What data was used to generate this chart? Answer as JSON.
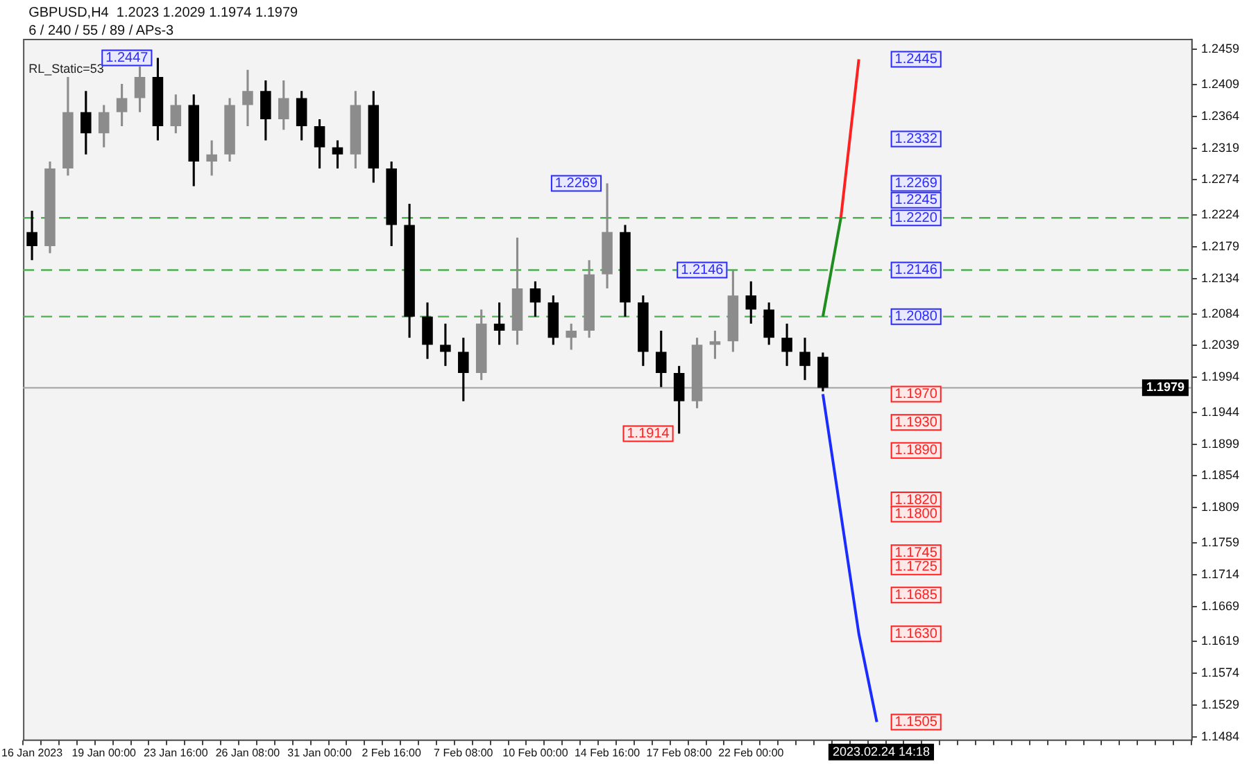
{
  "chart_data": {
    "type": "candlestick",
    "title": "GBPUSD,H4  1.2023 1.2029 1.1974 1.1979",
    "subtitle": "6 / 240 / 55 / 89 / APs-3",
    "categories": [
      "16 Jan 2023",
      null,
      null,
      null,
      "19 Jan 00:00",
      null,
      null,
      null,
      "23 Jan 16:00",
      null,
      null,
      null,
      "26 Jan 08:00",
      null,
      null,
      null,
      "31 Jan 00:00",
      null,
      null,
      null,
      "2 Feb 16:00",
      null,
      null,
      null,
      "7 Feb 08:00",
      null,
      null,
      null,
      "10 Feb 00:00",
      null,
      null,
      null,
      "14 Feb 16:00",
      null,
      null,
      null,
      "17 Feb 08:00",
      null,
      null,
      null,
      "22 Feb 00:00",
      null,
      null,
      null,
      null,
      null,
      null,
      null,
      null,
      null,
      null,
      null,
      null,
      null,
      null,
      null,
      null,
      null,
      null,
      null,
      null,
      null,
      null,
      null,
      null
    ],
    "colors": [
      "#000000",
      "#8c8c8c",
      "#8c8c8c",
      "#000000",
      "#8c8c8c",
      "#8c8c8c",
      "#8c8c8c",
      "#000000",
      "#8c8c8c",
      "#000000",
      "#8c8c8c",
      "#8c8c8c",
      "#8c8c8c",
      "#000000",
      "#8c8c8c",
      "#000000",
      "#000000",
      "#000000",
      "#8c8c8c",
      "#000000",
      "#000000",
      "#000000",
      "#000000",
      "#000000",
      "#000000",
      "#8c8c8c",
      "#000000",
      "#8c8c8c",
      "#000000",
      "#000000",
      "#8c8c8c",
      "#8c8c8c",
      "#8c8c8c",
      "#000000",
      "#000000",
      "#000000",
      "#000000",
      "#8c8c8c",
      "#8c8c8c",
      "#8c8c8c",
      "#000000",
      "#000000",
      "#000000",
      "#000000",
      "#000000",
      null,
      null,
      null,
      null,
      null,
      null,
      null,
      null,
      null,
      null,
      null,
      null,
      null,
      null,
      null,
      null,
      null,
      null,
      null,
      null
    ],
    "ohlc": [
      [
        1.22,
        1.223,
        1.216,
        1.218
      ],
      [
        1.218,
        1.23,
        1.217,
        1.229
      ],
      [
        1.229,
        1.242,
        1.228,
        1.237
      ],
      [
        1.237,
        1.24,
        1.231,
        1.234
      ],
      [
        1.234,
        1.238,
        1.232,
        1.237
      ],
      [
        1.237,
        1.241,
        1.235,
        1.239
      ],
      [
        1.239,
        1.2435,
        1.237,
        1.242
      ],
      [
        1.242,
        1.2447,
        1.233,
        1.235
      ],
      [
        1.235,
        1.2395,
        1.234,
        1.238
      ],
      [
        1.238,
        1.2395,
        1.2265,
        1.23
      ],
      [
        1.23,
        1.233,
        1.228,
        1.231
      ],
      [
        1.231,
        1.239,
        1.23,
        1.238
      ],
      [
        1.238,
        1.243,
        1.235,
        1.24
      ],
      [
        1.24,
        1.2415,
        1.233,
        1.236
      ],
      [
        1.236,
        1.2415,
        1.2345,
        1.239
      ],
      [
        1.239,
        1.24,
        1.233,
        1.235
      ],
      [
        1.235,
        1.236,
        1.229,
        1.232
      ],
      [
        1.232,
        1.233,
        1.229,
        1.231
      ],
      [
        1.231,
        1.24,
        1.229,
        1.238
      ],
      [
        1.238,
        1.24,
        1.227,
        1.229
      ],
      [
        1.229,
        1.23,
        1.218,
        1.221
      ],
      [
        1.221,
        1.224,
        1.205,
        1.208
      ],
      [
        1.208,
        1.21,
        1.202,
        1.204
      ],
      [
        1.204,
        1.207,
        1.201,
        1.203
      ],
      [
        1.203,
        1.205,
        1.196,
        1.2
      ],
      [
        1.2,
        1.209,
        1.199,
        1.207
      ],
      [
        1.207,
        1.21,
        1.204,
        1.206
      ],
      [
        1.206,
        1.2192,
        1.204,
        1.212
      ],
      [
        1.212,
        1.213,
        1.208,
        1.21
      ],
      [
        1.21,
        1.211,
        1.204,
        1.205
      ],
      [
        1.205,
        1.207,
        1.2033,
        1.206
      ],
      [
        1.206,
        1.216,
        1.205,
        1.214
      ],
      [
        1.214,
        1.2269,
        1.212,
        1.22
      ],
      [
        1.22,
        1.221,
        1.208,
        1.21
      ],
      [
        1.21,
        1.211,
        1.201,
        1.203
      ],
      [
        1.203,
        1.206,
        1.198,
        1.2
      ],
      [
        1.2,
        1.201,
        1.1914,
        1.196
      ],
      [
        1.196,
        1.205,
        1.195,
        1.204
      ],
      [
        1.204,
        1.206,
        1.202,
        1.2045
      ],
      [
        1.2045,
        1.2146,
        1.203,
        1.211
      ],
      [
        1.211,
        1.213,
        1.207,
        1.209
      ],
      [
        1.209,
        1.21,
        1.204,
        1.205
      ],
      [
        1.205,
        1.207,
        1.201,
        1.203
      ],
      [
        1.203,
        1.205,
        1.199,
        1.201
      ],
      [
        1.2023,
        1.2029,
        1.1974,
        1.1979
      ],
      null,
      null,
      null,
      null,
      null,
      null,
      null,
      null,
      null,
      null,
      null,
      null,
      null,
      null,
      null,
      null,
      null,
      null,
      null,
      null
    ],
    "series": [
      {
        "type": "line",
        "color": "#1e8c1e",
        "values": [
          null,
          null,
          null,
          null,
          null,
          null,
          null,
          null,
          null,
          null,
          null,
          null,
          null,
          null,
          null,
          null,
          null,
          null,
          null,
          null,
          null,
          null,
          null,
          null,
          null,
          null,
          null,
          null,
          null,
          null,
          null,
          null,
          null,
          null,
          null,
          null,
          null,
          null,
          null,
          null,
          null,
          null,
          null,
          null,
          1.208,
          1.222,
          null,
          null,
          null,
          null,
          null,
          null,
          null,
          null,
          null,
          null,
          null,
          null,
          null,
          null,
          null,
          null,
          null,
          null,
          null
        ]
      },
      {
        "type": "line",
        "color": "#ff2020",
        "values": [
          null,
          null,
          null,
          null,
          null,
          null,
          null,
          null,
          null,
          null,
          null,
          null,
          null,
          null,
          null,
          null,
          null,
          null,
          null,
          null,
          null,
          null,
          null,
          null,
          null,
          null,
          null,
          null,
          null,
          null,
          null,
          null,
          null,
          null,
          null,
          null,
          null,
          null,
          null,
          null,
          null,
          null,
          null,
          null,
          null,
          1.222,
          1.2445,
          null,
          null,
          null,
          null,
          null,
          null,
          null,
          null,
          null,
          null,
          null,
          null,
          null,
          null,
          null,
          null,
          null,
          null
        ]
      },
      {
        "type": "line",
        "color": "#1a2cff",
        "values": [
          null,
          null,
          null,
          null,
          null,
          null,
          null,
          null,
          null,
          null,
          null,
          null,
          null,
          null,
          null,
          null,
          null,
          null,
          null,
          null,
          null,
          null,
          null,
          null,
          null,
          null,
          null,
          null,
          null,
          null,
          null,
          null,
          null,
          null,
          null,
          null,
          null,
          null,
          null,
          null,
          null,
          null,
          null,
          null,
          1.197,
          1.18,
          1.163,
          1.1505,
          null,
          null,
          null,
          null,
          null,
          null,
          null,
          null,
          null,
          null,
          null,
          null,
          null,
          null,
          null,
          null,
          null
        ]
      }
    ],
    "ylim": [
      1.148,
      1.2474
    ],
    "yticks": [
      1.1484,
      1.1529,
      1.1574,
      1.1619,
      1.1669,
      1.1714,
      1.1759,
      1.1809,
      1.1854,
      1.1899,
      1.1944,
      1.1994,
      1.2039,
      1.2084,
      1.2134,
      1.2179,
      1.2224,
      1.2274,
      1.2319,
      1.2364,
      1.2409,
      1.2459
    ],
    "ref_lines": [
      {
        "axis": "y",
        "value": 1.222,
        "color": "#4caf50",
        "line_style": "dashed"
      },
      {
        "axis": "y",
        "value": 1.2146,
        "color": "#4caf50",
        "line_style": "dashed"
      },
      {
        "axis": "y",
        "value": 1.208,
        "color": "#4caf50",
        "line_style": "dashed"
      },
      {
        "axis": "y",
        "value": 1.1979,
        "label": "1.1979",
        "color": "#a8a8a8",
        "line_style": "solid"
      }
    ],
    "annotations": [
      "RL_Static=53",
      "2023.02.24 14:18",
      {
        "text": "1.2447",
        "y": 1.2447
      },
      {
        "text": "1.2269",
        "x": "14 Feb 16:00",
        "y": 1.2269
      },
      {
        "text": "1.2146",
        "y": 1.2146
      },
      {
        "text": "1.1914",
        "x": "17 Feb 08:00",
        "y": 1.1914
      },
      {
        "text": "1.2445",
        "y": 1.2445
      },
      {
        "text": "1.2332",
        "y": 1.2332
      },
      {
        "text": "1.2269",
        "y": 1.2269
      },
      {
        "text": "1.2245",
        "y": 1.2245
      },
      {
        "text": "1.2220",
        "y": 1.222
      },
      {
        "text": "1.2146",
        "y": 1.2146
      },
      {
        "text": "1.2080",
        "y": 1.208
      },
      {
        "text": "1.1970",
        "y": 1.197
      },
      {
        "text": "1.1930",
        "y": 1.193
      },
      {
        "text": "1.1890",
        "y": 1.189
      },
      {
        "text": "1.1820",
        "y": 1.182
      },
      {
        "text": "1.1800",
        "y": 1.18
      },
      {
        "text": "1.1745",
        "y": 1.1745
      },
      {
        "text": "1.1725",
        "y": 1.1725
      },
      {
        "text": "1.1685",
        "y": 1.1685
      },
      {
        "text": "1.1630",
        "y": 1.163
      },
      {
        "text": "1.1505",
        "y": 1.1505
      }
    ],
    "grid": false,
    "legend": false,
    "marker": "none"
  }
}
